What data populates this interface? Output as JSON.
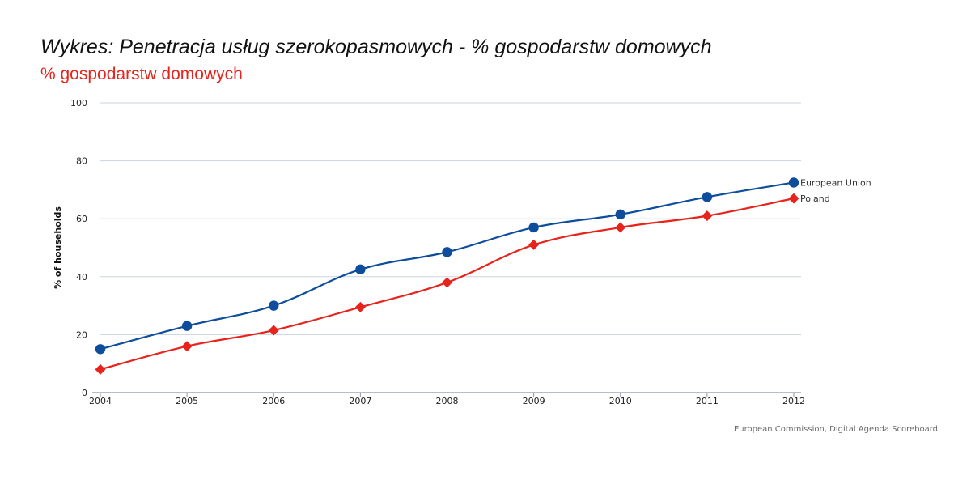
{
  "title": "Wykres: Penetracja usług szerokopasmowych - % gospodarstw domowych",
  "subtitle": "% gospodarstw domowych",
  "source": "European Commission, Digital Agenda Scoreboard",
  "chart_data": {
    "type": "line",
    "ylabel": "% of households",
    "xlabel": "",
    "x": [
      "2004",
      "2005",
      "2006",
      "2007",
      "2008",
      "2009",
      "2010",
      "2011",
      "2012"
    ],
    "ylim": [
      0,
      100
    ],
    "yticks": [
      0,
      20,
      40,
      60,
      80,
      100
    ],
    "grid": true,
    "legend": "end-of-line labels",
    "series": [
      {
        "name": "European Union",
        "color": "#0e4d9c",
        "marker": "circle",
        "values": [
          15,
          23,
          30,
          42.5,
          48.5,
          57,
          61.5,
          67.5,
          72.5
        ]
      },
      {
        "name": "Poland",
        "color": "#e8231b",
        "marker": "diamond",
        "values": [
          8,
          16,
          21.5,
          29.5,
          38,
          51,
          57,
          61,
          67
        ]
      }
    ]
  }
}
